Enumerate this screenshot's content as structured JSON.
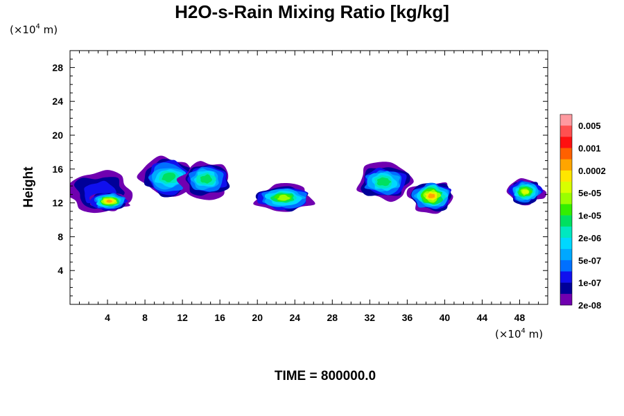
{
  "chart_data": {
    "type": "contour",
    "title": "H2O-s-Rain Mixing Ratio [kg/kg]",
    "ylabel": "Height",
    "y_unit": {
      "prefix": "(×10",
      "exp": "4",
      "suffix": " m)"
    },
    "x_unit": {
      "prefix": "(×10",
      "exp": "4",
      "suffix": " m)"
    },
    "footer": "TIME = 800000.0",
    "xlim": [
      0,
      51
    ],
    "ylim": [
      0,
      30
    ],
    "x_ticks": [
      4,
      8,
      12,
      16,
      20,
      24,
      28,
      32,
      36,
      40,
      44,
      48
    ],
    "y_ticks": [
      4,
      8,
      12,
      16,
      20,
      24,
      28
    ],
    "colorbar": {
      "labels": [
        "0.005",
        "0.001",
        "0.0002",
        "5e-05",
        "1e-05",
        "2e-06",
        "5e-07",
        "1e-07",
        "2e-08"
      ],
      "colors": [
        "#ff9aa0",
        "#ff5050",
        "#ff1010",
        "#ff6000",
        "#ffa500",
        "#ffe600",
        "#d8ff00",
        "#9aff00",
        "#33ee00",
        "#00e060",
        "#00e8c0",
        "#00d8ff",
        "#00a8ff",
        "#0070ff",
        "#1010ee",
        "#000098",
        "#7000b0"
      ]
    },
    "fields": [
      {
        "x": 3.2,
        "y": 13.2,
        "rx": 3.6,
        "ry": 2.6,
        "level": 3
      },
      {
        "x": 4.2,
        "y": 12.2,
        "rx": 2.2,
        "ry": 1.1,
        "level": 13
      },
      {
        "x": 10.5,
        "y": 15.0,
        "rx": 3.2,
        "ry": 2.4,
        "level": 8
      },
      {
        "x": 14.5,
        "y": 14.8,
        "rx": 2.8,
        "ry": 2.2,
        "level": 8
      },
      {
        "x": 22.8,
        "y": 12.6,
        "rx": 3.3,
        "ry": 1.6,
        "level": 10
      },
      {
        "x": 33.5,
        "y": 14.5,
        "rx": 3.0,
        "ry": 2.2,
        "level": 8
      },
      {
        "x": 38.6,
        "y": 12.8,
        "rx": 2.4,
        "ry": 1.9,
        "level": 13
      },
      {
        "x": 48.6,
        "y": 13.3,
        "rx": 2.0,
        "ry": 1.5,
        "level": 11
      }
    ]
  }
}
